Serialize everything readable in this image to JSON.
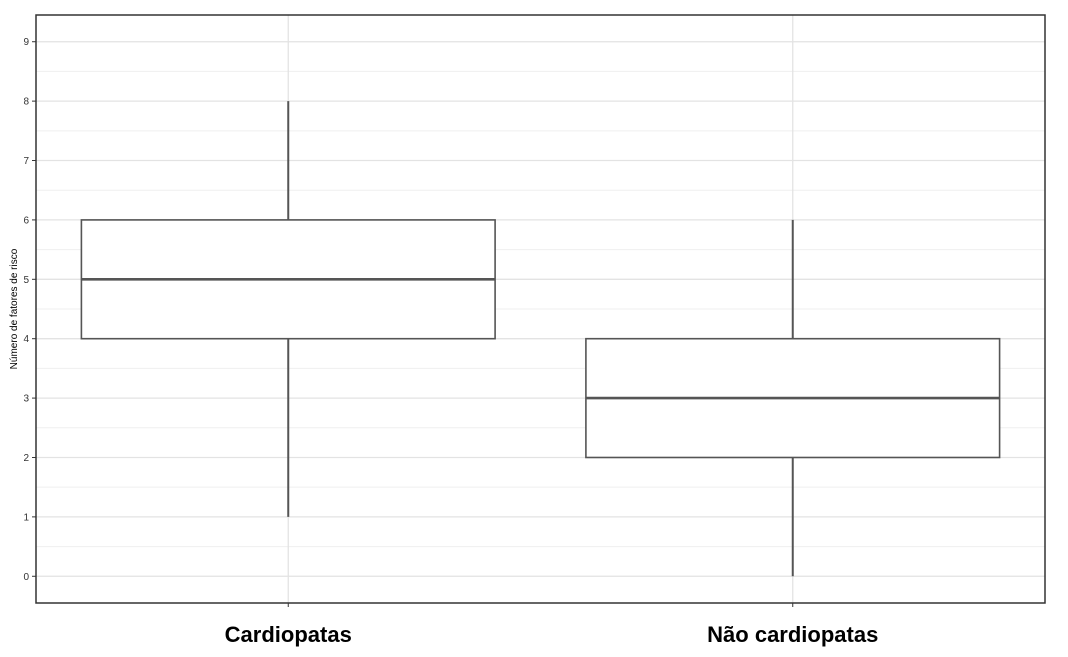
{
  "chart_data": {
    "type": "boxplot",
    "ylabel": "Número de fatores de risco",
    "xlabel": "",
    "ylim": [
      -0.45,
      9.45
    ],
    "yticks": [
      0,
      1,
      2,
      3,
      4,
      5,
      6,
      7,
      8,
      9
    ],
    "grid": true,
    "categories": [
      "Cardiopatas",
      "Não cardiopatas"
    ],
    "boxes": [
      {
        "category": "Cardiopatas",
        "min": 1,
        "q1": 4,
        "median": 5,
        "q3": 6,
        "max": 8
      },
      {
        "category": "Não cardiopatas",
        "min": 0,
        "q1": 2,
        "median": 3,
        "q3": 4,
        "max": 6
      }
    ],
    "colors": {
      "box_stroke": "#555555",
      "box_fill": "#ffffff",
      "grid": "#e3e3e3",
      "panel_border": "#333333"
    }
  }
}
